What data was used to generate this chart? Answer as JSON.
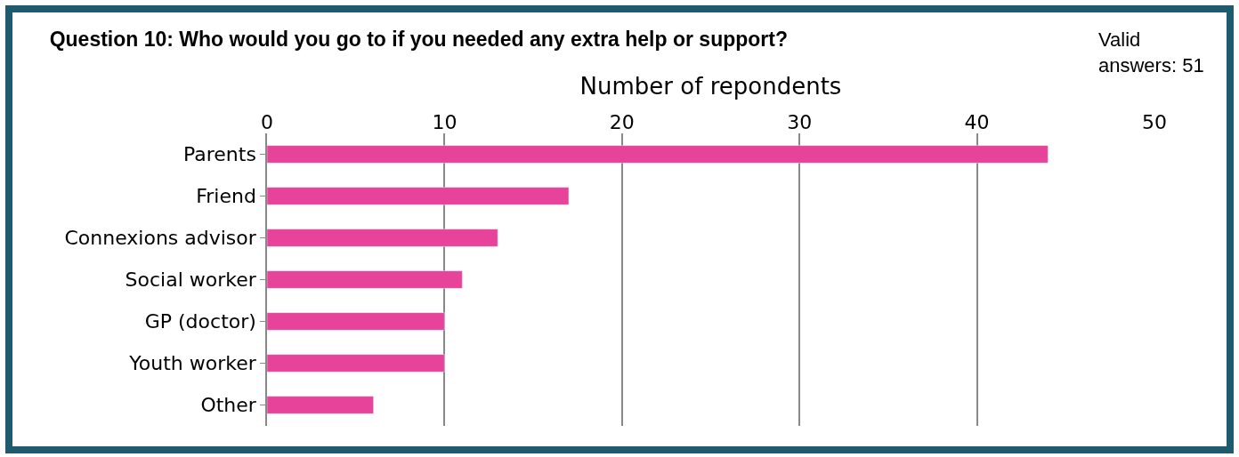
{
  "chart_data": {
    "type": "bar",
    "orientation": "horizontal",
    "title": "Question 10: Who would you go to if you needed any extra help or support?",
    "xlabel": "Number of repondents",
    "annotations": [
      "Valid\nanswers: 51"
    ],
    "categories": [
      "Parents",
      "Friend",
      "Connexions advisor",
      "Social worker",
      "GP (doctor)",
      "Youth worker",
      "Other"
    ],
    "values": [
      44,
      17,
      13,
      11,
      10,
      10,
      6
    ],
    "color": "#e8439a",
    "xlim": [
      0,
      50
    ],
    "xticks": [
      0,
      10,
      20,
      30,
      40,
      50
    ],
    "grid": "x"
  }
}
